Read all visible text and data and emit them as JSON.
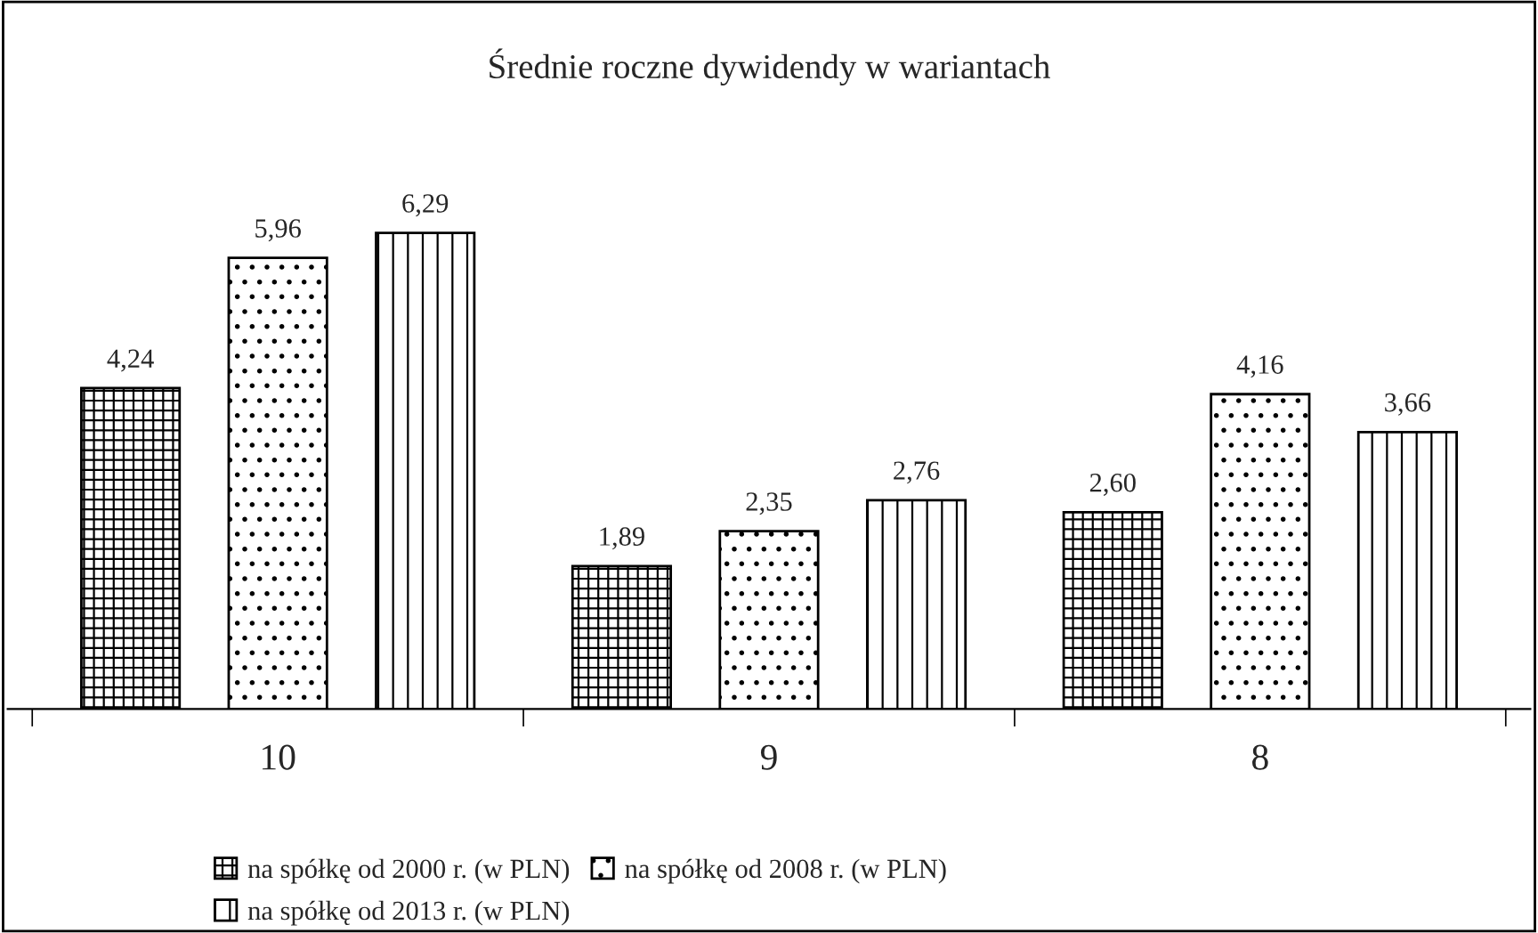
{
  "chart_data": {
    "type": "bar",
    "title": "Średnie roczne dywidendy w wariantach",
    "categories": [
      "10",
      "9",
      "8"
    ],
    "series": [
      {
        "name": "na spółkę od 2000 r. (w PLN)",
        "color": "#000000",
        "values": [
          4.24,
          1.89,
          2.6
        ],
        "value_labels": [
          "4,24",
          "1,89",
          "2,60"
        ]
      },
      {
        "name": "na spółkę od 2008 r. (w PLN)",
        "color": "#000000",
        "values": [
          5.96,
          2.35,
          4.16
        ],
        "value_labels": [
          "5,96",
          "2,35",
          "4,16"
        ]
      },
      {
        "name": "na spółkę od 2013 r. (w PLN)",
        "color": "#000000",
        "values": [
          6.29,
          2.76,
          3.66
        ],
        "value_labels": [
          "6,29",
          "2,76",
          "3,66"
        ]
      }
    ],
    "legend": "bottom",
    "grid": false
  }
}
